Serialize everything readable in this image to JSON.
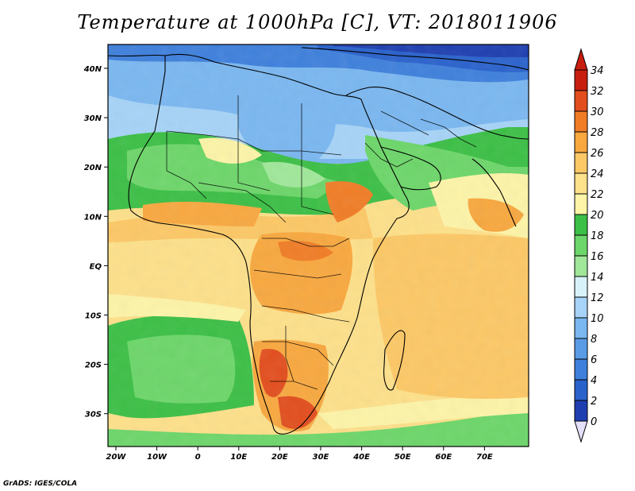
{
  "title": "Temperature at 1000hPa [C], VT: 2018011906",
  "credit": "GrADS: IGES/COLA",
  "axes": {
    "x_ticks": [
      "20W",
      "10W",
      "0",
      "10E",
      "20E",
      "30E",
      "40E",
      "50E",
      "60E",
      "70E"
    ],
    "y_ticks": [
      "40N",
      "30N",
      "20N",
      "10N",
      "EQ",
      "10S",
      "20S",
      "30S"
    ]
  },
  "colorbar": {
    "levels": [
      0,
      2,
      4,
      6,
      8,
      10,
      12,
      14,
      16,
      18,
      20,
      22,
      24,
      26,
      28,
      30,
      32,
      34
    ],
    "labels": [
      "34",
      "32",
      "30",
      "28",
      "26",
      "24",
      "22",
      "20",
      "18",
      "16",
      "14",
      "12",
      "10",
      "8",
      "6",
      "4",
      "2",
      "0"
    ],
    "colors": [
      "#0a0a6e",
      "#1f3fb0",
      "#2a62cc",
      "#3f80dc",
      "#5a9be6",
      "#7ab7f0",
      "#a6d3f7",
      "#d8f2fa",
      "#a0e79a",
      "#6dd66a",
      "#3cbf46",
      "#fdf4a8",
      "#fde08a",
      "#fcc866",
      "#f8a83f",
      "#f07d26",
      "#e24e1e",
      "#c81e10"
    ],
    "under_color": "#e4e0fa",
    "over_color": "#c81e10"
  }
}
